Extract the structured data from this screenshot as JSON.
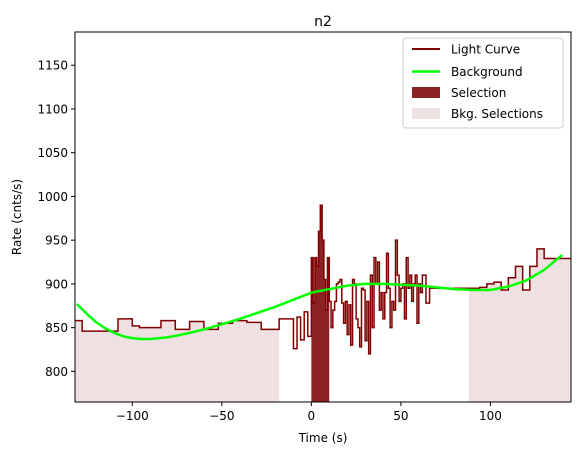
{
  "chart_data": {
    "type": "line",
    "title": "n2",
    "xlabel": "Time (s)",
    "ylabel": "Rate (cnts/s)",
    "xlim": [
      -132,
      145
    ],
    "ylim": [
      765,
      1188
    ],
    "xticks": [
      -100,
      -50,
      0,
      50,
      100
    ],
    "yticks": [
      800,
      850,
      900,
      950,
      1000,
      1050,
      1100,
      1150
    ],
    "legend_position": "upper right",
    "legend": [
      "Light Curve",
      "Background",
      "Selection",
      "Bkg. Selections"
    ],
    "colors": {
      "light_curve": "#7f0000",
      "background": "#00ff00",
      "selection": "#8b2323",
      "bkg_selection": "#efe1e1"
    },
    "bkg_selections": [
      [
        -132,
        -18
      ],
      [
        88,
        145
      ]
    ],
    "selection": [
      0,
      10
    ],
    "background_curve": {
      "x": [
        -131,
        -125,
        -120,
        -115,
        -110,
        -105,
        -100,
        -95,
        -90,
        -85,
        -80,
        -75,
        -70,
        -60,
        -50,
        -40,
        -30,
        -20,
        -10,
        0,
        10,
        20,
        30,
        40,
        50,
        60,
        70,
        80,
        90,
        100,
        110,
        120,
        130,
        140
      ],
      "y": [
        877,
        865,
        856,
        849,
        844,
        840,
        838,
        837,
        837,
        838,
        839,
        841,
        843,
        848,
        854,
        860,
        867,
        874,
        882,
        890,
        894,
        898,
        900,
        900,
        899,
        898,
        896,
        894,
        893,
        893,
        897,
        904,
        916,
        933
      ]
    },
    "light_curve": {
      "x": [
        -132,
        -128,
        -124,
        -120,
        -116,
        -112,
        -108,
        -104,
        -100,
        -96,
        -92,
        -88,
        -84,
        -80,
        -76,
        -72,
        -68,
        -64,
        -60,
        -56,
        -52,
        -48,
        -44,
        -40,
        -36,
        -32,
        -28,
        -24,
        -20,
        -18,
        -15,
        -12,
        -10,
        -8,
        -6,
        -4,
        -2,
        0,
        1,
        2,
        3,
        4,
        5,
        6,
        7,
        8,
        9,
        10,
        11,
        12,
        13,
        14,
        15,
        16,
        17,
        18,
        19,
        20,
        21,
        22,
        23,
        24,
        25,
        26,
        27,
        28,
        29,
        30,
        31,
        32,
        33,
        34,
        35,
        36,
        37,
        38,
        39,
        40,
        41,
        42,
        43,
        44,
        45,
        46,
        47,
        48,
        49,
        50,
        51,
        52,
        53,
        54,
        55,
        56,
        57,
        58,
        59,
        60,
        61,
        62,
        64,
        66,
        68,
        70,
        72,
        74,
        76,
        78,
        80,
        82,
        84,
        86,
        88,
        90,
        94,
        98,
        102,
        106,
        110,
        114,
        118,
        122,
        126,
        130,
        134,
        138,
        142
      ],
      "y": [
        858,
        846,
        846,
        846,
        846,
        846,
        860,
        860,
        852,
        850,
        850,
        850,
        858,
        858,
        848,
        848,
        857,
        857,
        848,
        848,
        855,
        855,
        858,
        858,
        856,
        856,
        848,
        848,
        848,
        860,
        860,
        860,
        826,
        862,
        836,
        868,
        840,
        930,
        878,
        930,
        920,
        960,
        990,
        950,
        905,
        870,
        930,
        880,
        850,
        870,
        880,
        900,
        902,
        905,
        878,
        855,
        880,
        842,
        876,
        830,
        905,
        900,
        860,
        850,
        828,
        895,
        893,
        835,
        880,
        820,
        910,
        850,
        930,
        900,
        925,
        870,
        890,
        860,
        890,
        935,
        895,
        850,
        880,
        870,
        950,
        910,
        880,
        895,
        900,
        860,
        930,
        895,
        910,
        880,
        900,
        910,
        855,
        900,
        890,
        910,
        878,
        895,
        895,
        895,
        895,
        895,
        895,
        895,
        895,
        895,
        895,
        895,
        895,
        895,
        896,
        900,
        902,
        893,
        907,
        920,
        893,
        920,
        940,
        929,
        929,
        929,
        929
      ]
    }
  }
}
